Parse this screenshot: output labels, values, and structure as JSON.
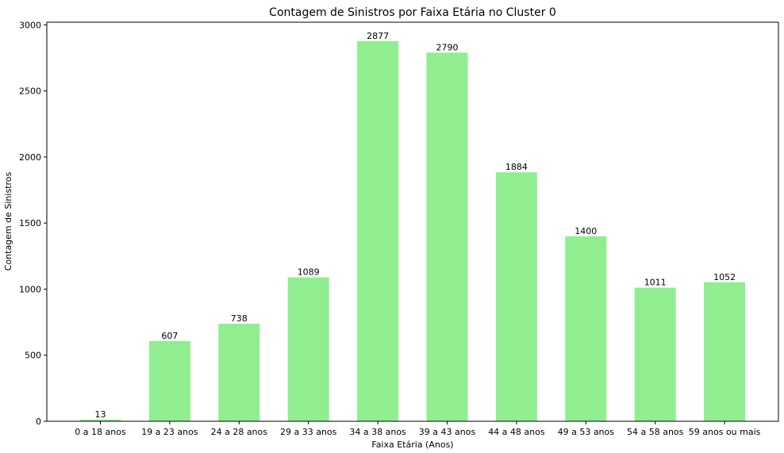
{
  "chart_data": {
    "type": "bar",
    "title": "Contagem de Sinistros por Faixa Etária no Cluster 0",
    "xlabel": "Faixa Etária (Anos)",
    "ylabel": "Contagem de Sinistros",
    "categories": [
      "0 a 18 anos",
      "19 a 23 anos",
      "24 a 28 anos",
      "29 a 33 anos",
      "34 a 38 anos",
      "39 a 43 anos",
      "44 a 48 anos",
      "49 a 53 anos",
      "54 a 58 anos",
      "59 anos ou mais"
    ],
    "values": [
      13,
      607,
      738,
      1089,
      2877,
      2790,
      1884,
      1400,
      1011,
      1052
    ],
    "data_labels": [
      "13",
      "607",
      "738",
      "1089",
      "2877",
      "2790",
      "1884",
      "1400",
      "1011",
      "1052"
    ],
    "ylim": [
      0,
      3020
    ],
    "yticks": [
      0,
      500,
      1000,
      1500,
      2000,
      2500,
      3000
    ],
    "ytick_labels": [
      "0",
      "500",
      "1000",
      "1500",
      "2000",
      "2500",
      "3000"
    ],
    "bar_color": "#90ee90",
    "grid": false,
    "legend": "none"
  }
}
